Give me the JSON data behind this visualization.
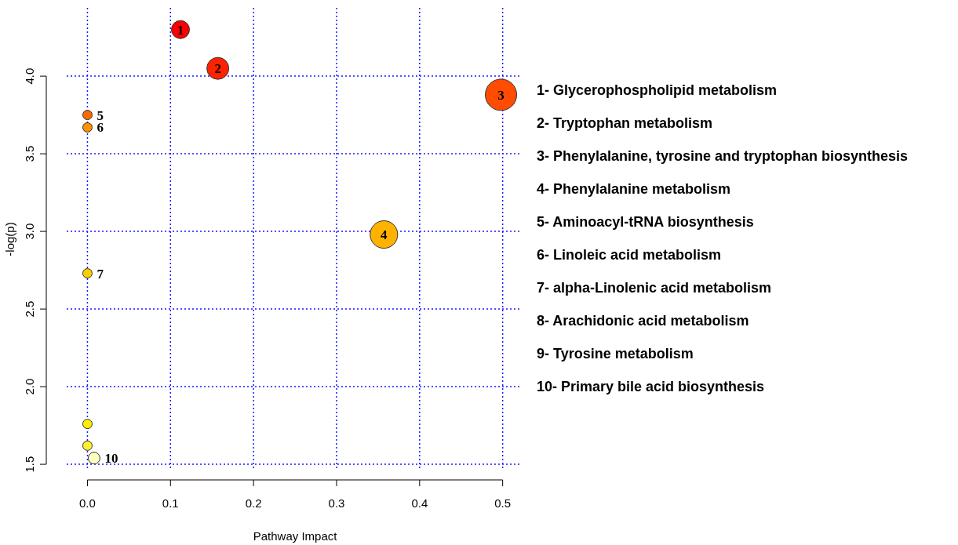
{
  "chart_data": {
    "type": "bubble",
    "xlabel": "Pathway Impact",
    "ylabel": "-log(p)",
    "xlim": [
      -0.025,
      0.523
    ],
    "ylim": [
      1.46,
      4.44
    ],
    "xticks": [
      {
        "value": 0,
        "label": "0.0"
      },
      0.1,
      0.2,
      0.3,
      0.4,
      0.5
    ],
    "yticks": [
      1.5,
      {
        "value": 2,
        "label": "2.0"
      },
      2.5,
      {
        "value": 3,
        "label": "3.0"
      },
      3.5,
      {
        "value": 4,
        "label": "4.0"
      }
    ],
    "grid": true,
    "marker": "circle",
    "x": [
      0.112,
      0.157,
      0.498,
      0.357,
      0,
      0,
      0,
      0,
      0,
      0.008
    ],
    "values": [
      4.3,
      4.05,
      3.88,
      2.98,
      3.75,
      3.67,
      2.73,
      1.76,
      1.62,
      1.54
    ],
    "sizes": [
      0.33,
      0.49,
      1,
      0.77,
      0.09,
      0.09,
      0.09,
      0.09,
      0.09,
      0.14
    ],
    "colors": [
      "#ff0000",
      "#ff2200",
      "#ff4c00",
      "#ffb300",
      "#ff6a00",
      "#ff9000",
      "#ffcc00",
      "#ffee00",
      "#fff030",
      "#ffffc0"
    ],
    "annotations": [
      {
        "text": "1",
        "x": 0.112,
        "y": 4.3
      },
      {
        "text": "2",
        "x": 0.157,
        "y": 4.05
      },
      {
        "text": "3",
        "x": 0.498,
        "y": 3.88
      },
      {
        "text": "4",
        "x": 0.357,
        "y": 2.98
      },
      {
        "text": "5",
        "x": 0,
        "y": 3.75
      },
      {
        "text": "6",
        "x": 0,
        "y": 3.67
      },
      {
        "text": "7",
        "x": 0,
        "y": 2.73
      },
      {
        "text": "10",
        "x": 0.008,
        "y": 1.54
      },
      "1- Glycerophospholipid metabolism",
      "2- Tryptophan metabolism",
      "3- Phenylalanine, tyrosine and tryptophan biosynthesis",
      "4- Phenylalanine metabolism",
      "5- Aminoacyl-tRNA biosynthesis",
      "6- Linoleic acid metabolism",
      "7- alpha-Linolenic acid metabolism",
      "8- Arachidonic acid metabolism",
      "9- Tyrosine metabolism",
      "10- Primary bile acid biosynthesis"
    ]
  }
}
